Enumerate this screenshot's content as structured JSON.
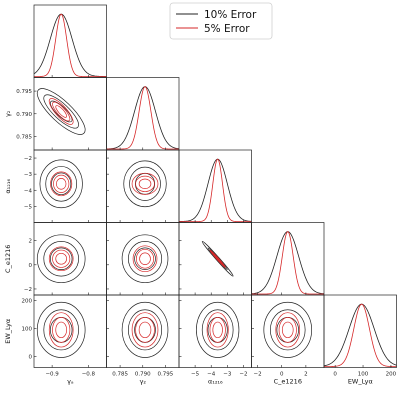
{
  "chart_data": {
    "type": "corner",
    "parameters": [
      {
        "key": "g",
        "label": "γ_a",
        "html_label": "γₐ",
        "range": [
          -0.95,
          -0.75
        ],
        "ticks": [
          -0.9,
          -0.8
        ],
        "tick_labels": [
          "−0.9",
          "−0.8"
        ]
      },
      {
        "key": "g2",
        "label": "γ_2",
        "html_label": "γ₂",
        "range": [
          0.782,
          0.798
        ],
        "ticks": [
          0.785,
          0.79,
          0.795
        ],
        "tick_labels": [
          "0.785",
          "0.790",
          "0.795"
        ]
      },
      {
        "key": "a",
        "label": "α^{ε=0}_{1216}",
        "html_label": "α₁₂₁₆",
        "range": [
          -6,
          -1.5
        ],
        "ticks": [
          -5,
          -4,
          -3,
          -2
        ],
        "tick_labels": [
          "−5",
          "−4",
          "−3",
          "−2"
        ]
      },
      {
        "key": "c",
        "label": "C_{e1216}",
        "html_label": "C_e1216",
        "range": [
          -2.5,
          3.5
        ],
        "ticks": [
          -2,
          0,
          2
        ],
        "tick_labels": [
          "−2",
          "0",
          "2"
        ]
      },
      {
        "key": "ew",
        "label": "EW^{ε=1}_{Lyα}",
        "html_label": "EW_Lyα",
        "range": [
          -40,
          220
        ],
        "ticks": [
          0,
          100,
          200
        ],
        "tick_labels": [
          "0",
          "100",
          "200"
        ]
      }
    ],
    "series": [
      {
        "name": "10% Error",
        "color": "#222222",
        "mean": [
          -0.875,
          0.7905,
          -3.6,
          0.5,
          95
        ],
        "sigma": [
          0.03,
          0.0023,
          0.6,
          0.9,
          45
        ]
      },
      {
        "name": "5% Error",
        "color": "#d62728",
        "mean": [
          -0.875,
          0.7905,
          -3.6,
          0.5,
          95
        ],
        "sigma": [
          0.015,
          0.0013,
          0.3,
          0.45,
          28
        ]
      }
    ],
    "correlations": [
      {
        "pair": [
          "g",
          "g2"
        ],
        "rho": -0.8
      },
      {
        "pair": [
          "a",
          "c"
        ],
        "rho": -0.99
      }
    ],
    "legend": {
      "placement": "top-right"
    }
  },
  "colors": {
    "ten_pct": "#222222",
    "five_pct": "#d62728",
    "band_fill": "#d62728"
  }
}
